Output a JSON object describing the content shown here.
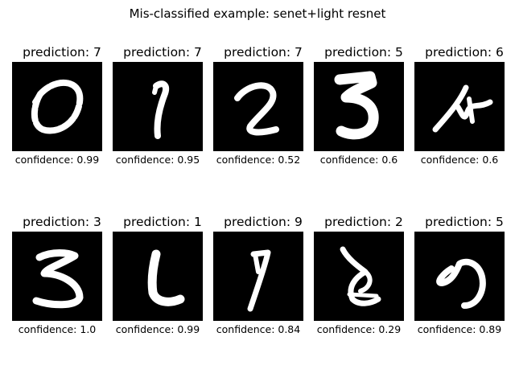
{
  "title": "Mis-classified example: senet+light resnet",
  "chart_data": {
    "type": "image-grid",
    "rows": 2,
    "cols": 5,
    "title": "Mis-classified example: senet+light resnet",
    "samples": [
      {
        "prediction_label": "prediction: 7",
        "prediction": 7,
        "confidence_label": "confidence: 0.99",
        "confidence": 0.99,
        "digit_shape": "digit-0"
      },
      {
        "prediction_label": "prediction: 7",
        "prediction": 7,
        "confidence_label": "confidence: 0.95",
        "confidence": 0.95,
        "digit_shape": "digit-1"
      },
      {
        "prediction_label": "prediction: 7",
        "prediction": 7,
        "confidence_label": "confidence: 0.52",
        "confidence": 0.52,
        "digit_shape": "digit-2"
      },
      {
        "prediction_label": "prediction: 5",
        "prediction": 5,
        "confidence_label": "confidence: 0.6",
        "confidence": 0.6,
        "digit_shape": "digit-3"
      },
      {
        "prediction_label": "prediction: 6",
        "prediction": 6,
        "confidence_label": "confidence: 0.6",
        "confidence": 0.6,
        "digit_shape": "digit-4"
      },
      {
        "prediction_label": "prediction: 3",
        "prediction": 3,
        "confidence_label": "confidence: 1.0",
        "confidence": 1.0,
        "digit_shape": "digit-5"
      },
      {
        "prediction_label": "prediction: 1",
        "prediction": 1,
        "confidence_label": "confidence: 0.99",
        "confidence": 0.99,
        "digit_shape": "digit-6"
      },
      {
        "prediction_label": "prediction: 9",
        "prediction": 9,
        "confidence_label": "confidence: 0.84",
        "confidence": 0.84,
        "digit_shape": "digit-7"
      },
      {
        "prediction_label": "prediction: 2",
        "prediction": 2,
        "confidence_label": "confidence: 0.29",
        "confidence": 0.29,
        "digit_shape": "digit-8"
      },
      {
        "prediction_label": "prediction: 5",
        "prediction": 5,
        "confidence_label": "confidence: 0.89",
        "confidence": 0.89,
        "digit_shape": "digit-9"
      }
    ],
    "colors": {
      "image_background": "#000000",
      "stroke": "#ffffff",
      "text": "#000000"
    }
  }
}
